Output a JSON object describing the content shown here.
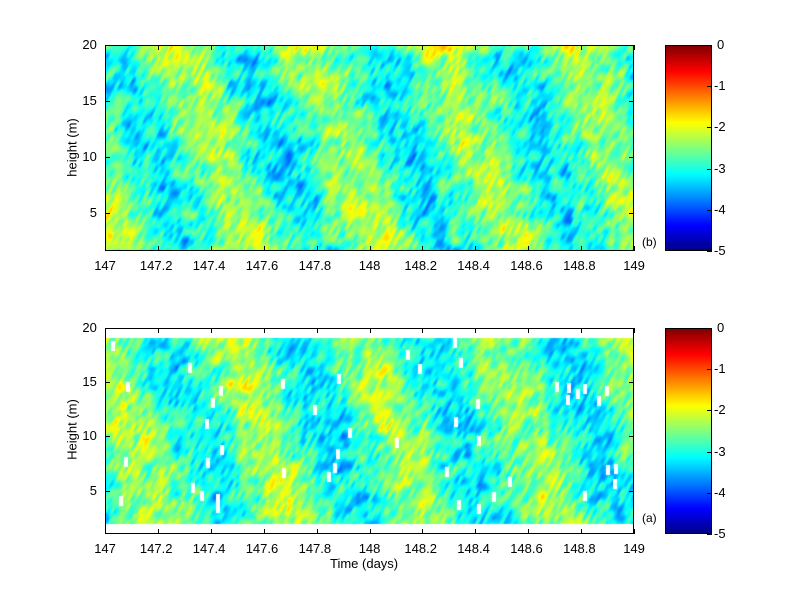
{
  "chart_data": [
    {
      "type": "heatmap",
      "panel_label": "(b)",
      "xlabel": "",
      "ylabel": "height (m)",
      "xlim": [
        147,
        149
      ],
      "ylim": [
        1.6,
        20
      ],
      "xticks": [
        "147",
        "147.2",
        "147.4",
        "147.6",
        "147.8",
        "148",
        "148.2",
        "148.4",
        "148.6",
        "148.8",
        "149"
      ],
      "yticks": [
        "5",
        "10",
        "15",
        "20"
      ],
      "colorbar": {
        "clim": [
          -5,
          0
        ],
        "ticks": [
          "0",
          "-1",
          "-2",
          "-3",
          "-4",
          "-5"
        ],
        "colormap": "jet"
      },
      "description_of_values": "values mostly -4 to -2.5 with tilted low (blue) bands roughly every 0.25 days; higher values (-2 to -1) near 20 m around 147.3 and 148.9"
    },
    {
      "type": "heatmap",
      "panel_label": "(a)",
      "xlabel": "Time (days)",
      "ylabel": "Height (m)",
      "xlim": [
        147,
        149
      ],
      "ylim": [
        1,
        20
      ],
      "data_height_range": [
        1.9,
        19.1
      ],
      "xticks": [
        "147",
        "147.2",
        "147.4",
        "147.6",
        "147.8",
        "148",
        "148.2",
        "148.4",
        "148.6",
        "148.8",
        "149"
      ],
      "yticks": [
        "5",
        "10",
        "15",
        "20"
      ],
      "colorbar": {
        "clim": [
          -5,
          0
        ],
        "ticks": [
          "0",
          "-1",
          "-2",
          "-3",
          "-4",
          "-5"
        ],
        "colormap": "jet"
      },
      "missing_data": "scattered white gaps (NaN) within low bands"
    }
  ]
}
